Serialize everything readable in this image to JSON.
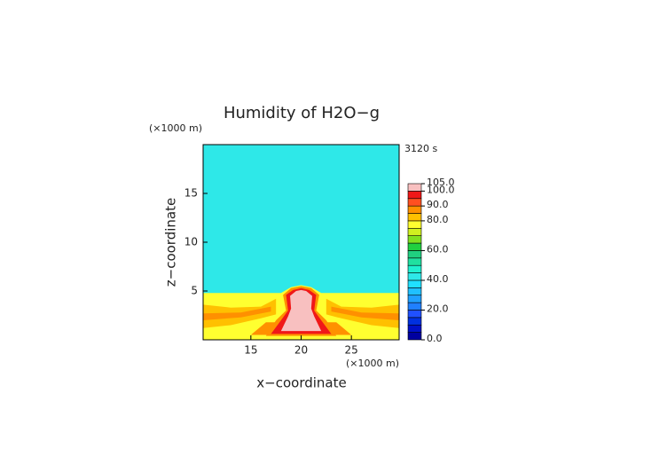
{
  "chart_data": {
    "type": "contour",
    "title": "Humidity of H2O−g",
    "time_label": "3120 s",
    "x_label": "x−coordinate",
    "y_label": "z−coordinate",
    "x_unit": "(×1000 m)",
    "y_unit": "(×1000 m)",
    "xlim": [
      10.25,
      29.75
    ],
    "ylim": [
      0,
      20
    ],
    "xticks": [
      15,
      20,
      25
    ],
    "yticks": [
      5,
      10,
      15
    ],
    "colorbar": {
      "levels": [
        0,
        5,
        10,
        15,
        20,
        25,
        30,
        35,
        40,
        45,
        50,
        55,
        60,
        65,
        70,
        75,
        80,
        85,
        90,
        95,
        100,
        105
      ],
      "colors": [
        "#0000a0",
        "#0010c8",
        "#0030e0",
        "#2050ff",
        "#2080ff",
        "#20a0ff",
        "#20c0ff",
        "#20e0ff",
        "#2ee8e8",
        "#20f0d0",
        "#20e0a0",
        "#20d080",
        "#20d040",
        "#80e020",
        "#d0f020",
        "#ffff30",
        "#ffc000",
        "#ff9000",
        "#ff5020",
        "#f01818",
        "#f8c0c0"
      ],
      "ticks": [
        {
          "value": 0,
          "label": "0.0"
        },
        {
          "value": 20,
          "label": "20.0"
        },
        {
          "value": 40,
          "label": "40.0"
        },
        {
          "value": 60,
          "label": "60.0"
        },
        {
          "value": 80,
          "label": "80.0"
        },
        {
          "value": 90,
          "label": "90.0"
        },
        {
          "value": 100,
          "label": "100.0"
        },
        {
          "value": 105,
          "label": "105.0"
        }
      ]
    },
    "contours": [
      {
        "level": 42,
        "points": [
          [
            10.25,
            0
          ],
          [
            29.75,
            0
          ],
          [
            29.75,
            20
          ],
          [
            10.25,
            20
          ]
        ]
      },
      {
        "level": 77,
        "points": [
          [
            10.25,
            0
          ],
          [
            29.75,
            0
          ],
          [
            29.75,
            4.8
          ],
          [
            22,
            4.8
          ],
          [
            21,
            5.4
          ],
          [
            20,
            5.6
          ],
          [
            19,
            5.4
          ],
          [
            18,
            4.8
          ],
          [
            10.25,
            4.8
          ]
        ]
      },
      {
        "level": 82,
        "points": [
          [
            10.25,
            1.2
          ],
          [
            13,
            1.5
          ],
          [
            16,
            2.2
          ],
          [
            17.5,
            2.6
          ],
          [
            17.5,
            4.2
          ],
          [
            16,
            3.4
          ],
          [
            13,
            3.3
          ],
          [
            10.25,
            3.6
          ]
        ]
      },
      {
        "level": 82,
        "points": [
          [
            29.75,
            1.2
          ],
          [
            27,
            1.5
          ],
          [
            24,
            2.2
          ],
          [
            22.5,
            2.6
          ],
          [
            22.5,
            4.2
          ],
          [
            24,
            3.4
          ],
          [
            27,
            3.3
          ],
          [
            29.75,
            3.6
          ]
        ]
      },
      {
        "level": 87,
        "points": [
          [
            10.25,
            2
          ],
          [
            14,
            2.3
          ],
          [
            17,
            2.9
          ],
          [
            17,
            3.4
          ],
          [
            14,
            2.8
          ],
          [
            10.25,
            2.7
          ]
        ]
      },
      {
        "level": 87,
        "points": [
          [
            29.75,
            2
          ],
          [
            26,
            2.3
          ],
          [
            23,
            2.9
          ],
          [
            23,
            3.4
          ],
          [
            26,
            2.8
          ],
          [
            29.75,
            2.7
          ]
        ]
      },
      {
        "level": 87,
        "points": [
          [
            15,
            0.5
          ],
          [
            25,
            0.5
          ],
          [
            23.5,
            1.8
          ],
          [
            16.5,
            1.8
          ]
        ]
      },
      {
        "level": 87,
        "points": [
          [
            16.5,
            0.4
          ],
          [
            23.5,
            0.4
          ],
          [
            22.5,
            2
          ],
          [
            21.5,
            3
          ],
          [
            21.8,
            4.6
          ],
          [
            21,
            5.3
          ],
          [
            20,
            5.5
          ],
          [
            19,
            5.3
          ],
          [
            18.2,
            4.6
          ],
          [
            18.5,
            3
          ],
          [
            17.5,
            2
          ]
        ]
      },
      {
        "level": 97,
        "points": [
          [
            17,
            0.6
          ],
          [
            23,
            0.6
          ],
          [
            22,
            2
          ],
          [
            21.3,
            3
          ],
          [
            21.5,
            4.6
          ],
          [
            20.8,
            5.1
          ],
          [
            20,
            5.3
          ],
          [
            19.2,
            5.1
          ],
          [
            18.5,
            4.6
          ],
          [
            18.7,
            3
          ],
          [
            18,
            2
          ]
        ]
      },
      {
        "level": 102,
        "points": [
          [
            18,
            0.9
          ],
          [
            22,
            0.9
          ],
          [
            21.3,
            2.4
          ],
          [
            21,
            3.2
          ],
          [
            21.1,
            4.5
          ],
          [
            20.5,
            5
          ],
          [
            20,
            5.1
          ],
          [
            19.5,
            5
          ],
          [
            18.9,
            4.5
          ],
          [
            19,
            3.2
          ],
          [
            18.7,
            2.4
          ]
        ]
      }
    ]
  }
}
